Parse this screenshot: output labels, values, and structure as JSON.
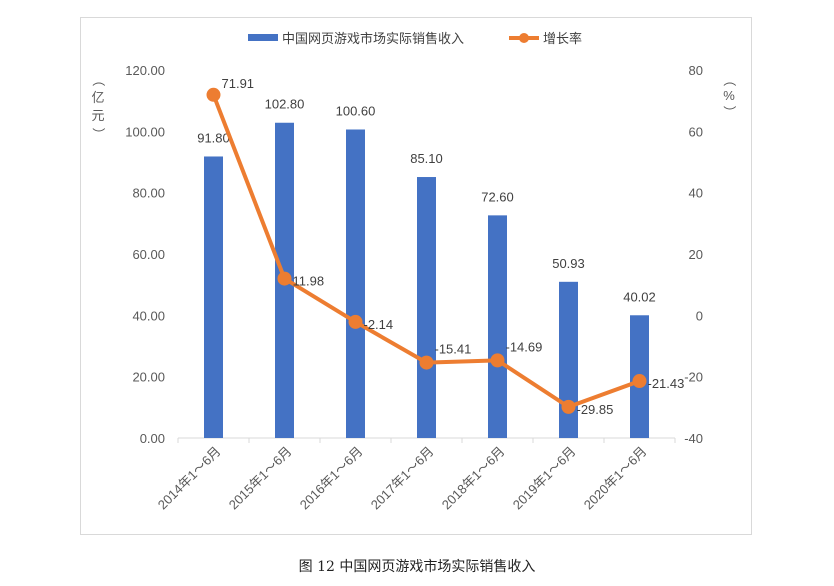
{
  "chart_data": {
    "type": "bar+line",
    "categories": [
      "2014年1～6月",
      "2015年1～6月",
      "2016年1～6月",
      "2017年1～6月",
      "2018年1～6月",
      "2019年1～6月",
      "2020年1～6月"
    ],
    "series": [
      {
        "name": "中国网页游戏市场实际销售收入",
        "type": "bar",
        "axis": "left",
        "color": "#4472c4",
        "values": [
          91.8,
          102.8,
          100.6,
          85.1,
          72.6,
          50.93,
          40.02
        ],
        "labels": [
          "91.80",
          "102.80",
          "100.60",
          "85.10",
          "72.60",
          "50.93",
          "40.02"
        ]
      },
      {
        "name": "增长率",
        "type": "line",
        "axis": "right",
        "color": "#ed7d31",
        "values": [
          71.91,
          11.98,
          -2.14,
          -15.41,
          -14.69,
          -29.85,
          -21.43
        ],
        "labels": [
          "71.91",
          "11.98",
          "-2.14",
          "-15.41",
          "-14.69",
          "-29.85",
          "-21.43"
        ]
      }
    ],
    "left_axis": {
      "label": "（亿元）",
      "label_chars": [
        "（",
        "亿",
        "元",
        "）"
      ],
      "ylim": [
        0,
        120
      ],
      "ticks": [
        "0.00",
        "20.00",
        "40.00",
        "60.00",
        "80.00",
        "100.00",
        "120.00"
      ]
    },
    "right_axis": {
      "label": "（%）",
      "label_chars": [
        "（",
        "%",
        "）"
      ],
      "ylim": [
        -40,
        80
      ],
      "ticks": [
        "-40",
        "-20",
        "0",
        "20",
        "40",
        "60",
        "80"
      ]
    },
    "legend": "top",
    "grid": false
  },
  "caption": "图 12 中国网页游戏市场实际销售收入"
}
